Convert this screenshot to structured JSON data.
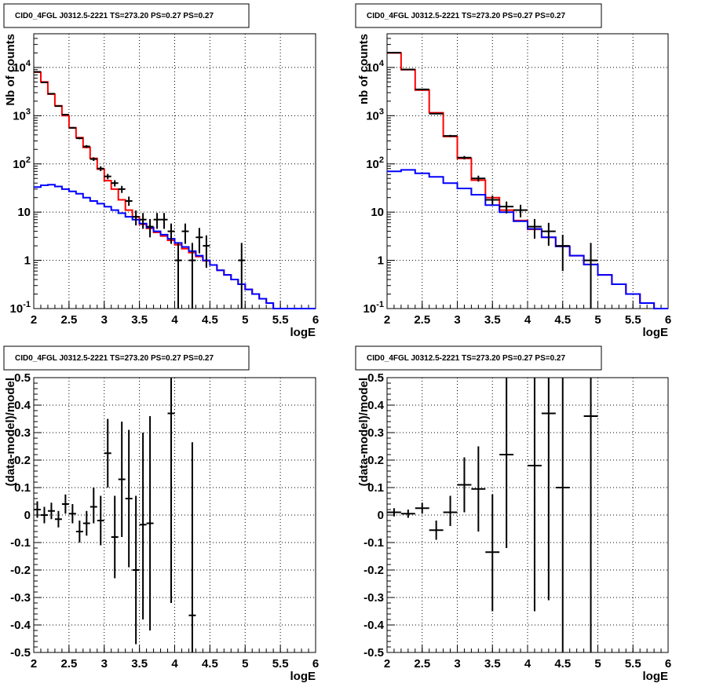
{
  "chart_data": [
    {
      "type": "line",
      "title": "CID0_4FGL J0312.5-2221 TS=273.20 PS=0.27 PS=0.27",
      "xlabel": "logE",
      "ylabel": "Nb of counts",
      "xlim": [
        2,
        6
      ],
      "ylim": [
        0.1,
        50000
      ],
      "yscale": "log",
      "grid": true,
      "x_ticks": [
        "2",
        "2.5",
        "3",
        "3.5",
        "4",
        "4.5",
        "5",
        "5.5",
        "6"
      ],
      "y_ticks": [
        {
          "value": 0.1,
          "base": "10",
          "exp": "-1"
        },
        {
          "value": 1,
          "label": "1"
        },
        {
          "value": 10,
          "label": "10"
        },
        {
          "value": 100,
          "base": "10",
          "exp": "2"
        },
        {
          "value": 1000,
          "base": "10",
          "exp": "3"
        },
        {
          "value": 10000,
          "base": "10",
          "exp": "4"
        }
      ],
      "series": [
        {
          "color": "#ff0000",
          "style": "step",
          "bin_width": 0.1,
          "x": [
            2.05,
            2.15,
            2.25,
            2.35,
            2.45,
            2.55,
            2.65,
            2.75,
            2.85,
            2.95,
            3.05,
            3.15,
            3.25,
            3.35,
            3.45,
            3.55,
            3.65,
            3.75,
            3.85,
            3.95,
            4.05,
            4.15,
            4.25,
            4.35,
            4.45,
            4.55,
            4.65,
            4.75,
            4.85,
            4.95,
            5.05,
            5.15,
            5.25,
            5.35,
            5.45,
            5.55,
            5.65,
            5.75,
            5.85,
            5.95
          ],
          "values": [
            8000,
            5000,
            2800,
            1600,
            1000,
            560,
            350,
            220,
            130,
            78,
            45,
            30,
            18,
            11,
            8,
            5.6,
            4.6,
            3.8,
            3.2,
            2.6,
            2.1,
            1.75,
            1.45,
            1.2,
            0.98,
            0.8,
            0.62,
            0.5,
            0.4,
            0.32,
            0.25,
            0.2,
            0.16,
            0.13,
            0.1,
            0.1,
            0.1,
            0.1,
            0.1,
            0.1
          ]
        },
        {
          "color": "#0000ff",
          "style": "step",
          "bin_width": 0.1,
          "x": [
            2.05,
            2.15,
            2.25,
            2.35,
            2.45,
            2.55,
            2.65,
            2.75,
            2.85,
            2.95,
            3.05,
            3.15,
            3.25,
            3.35,
            3.45,
            3.55,
            3.65,
            3.75,
            3.85,
            3.95,
            4.05,
            4.15,
            4.25,
            4.35,
            4.45,
            4.55,
            4.65,
            4.75,
            4.85,
            4.95,
            5.05,
            5.15,
            5.25,
            5.35,
            5.45,
            5.55,
            5.65,
            5.75,
            5.85,
            5.95
          ],
          "values": [
            33,
            36,
            37,
            34,
            30,
            27,
            24,
            20,
            17,
            15,
            13,
            11,
            9.5,
            8,
            7,
            5.8,
            4.8,
            4,
            3.4,
            2.8,
            2.3,
            1.9,
            1.55,
            1.25,
            1.0,
            0.8,
            0.62,
            0.5,
            0.4,
            0.32,
            0.25,
            0.2,
            0.16,
            0.13,
            0.1,
            0.1,
            0.1,
            0.1,
            0.1,
            0.1
          ]
        }
      ],
      "points": {
        "color": "#000000",
        "x": [
          2.05,
          2.15,
          2.25,
          2.35,
          2.45,
          2.55,
          2.65,
          2.75,
          2.85,
          2.95,
          3.05,
          3.15,
          3.25,
          3.35,
          3.45,
          3.55,
          3.65,
          3.75,
          3.85,
          3.95,
          4.05,
          4.15,
          4.25,
          4.35,
          4.45,
          4.95
        ],
        "y": [
          8100,
          4900,
          2850,
          1580,
          1050,
          560,
          340,
          230,
          126,
          80,
          55,
          40,
          30,
          17,
          8,
          7,
          5,
          7,
          7,
          4,
          1,
          4,
          1,
          3,
          2,
          1
        ],
        "xerr": 0.05,
        "ylo": [
          7900,
          4800,
          2750,
          1540,
          1020,
          540,
          325,
          215,
          115,
          71,
          48,
          34,
          25,
          13.5,
          5.3,
          4.5,
          3,
          4.5,
          4.5,
          2.2,
          0.1,
          2.2,
          0.1,
          1.4,
          0.7,
          0.1
        ],
        "yhi": [
          8300,
          5000,
          2950,
          1620,
          1080,
          580,
          355,
          245,
          137,
          89,
          62,
          46,
          35,
          21,
          10.8,
          9.6,
          7.2,
          9.6,
          9.6,
          5.8,
          2.3,
          5.8,
          2.3,
          4.7,
          3.3,
          2.3
        ]
      }
    },
    {
      "type": "line",
      "title": "CID0_4FGL J0312.5-2221 TS=273.20 PS=0.27 PS=0.27",
      "xlabel": "logE",
      "ylabel": "nb of counts",
      "xlim": [
        2,
        6
      ],
      "ylim": [
        0.1,
        50000
      ],
      "yscale": "log",
      "grid": true,
      "x_ticks": [
        "2",
        "2.5",
        "3",
        "3.5",
        "4",
        "4.5",
        "5",
        "5.5",
        "6"
      ],
      "y_ticks": [
        {
          "value": 0.1,
          "base": "10",
          "exp": "-1"
        },
        {
          "value": 1,
          "label": "1"
        },
        {
          "value": 10,
          "label": "10"
        },
        {
          "value": 100,
          "base": "10",
          "exp": "2"
        },
        {
          "value": 1000,
          "base": "10",
          "exp": "3"
        },
        {
          "value": 10000,
          "base": "10",
          "exp": "4"
        }
      ],
      "series": [
        {
          "color": "#ff0000",
          "style": "step",
          "bin_width": 0.2,
          "x": [
            2.1,
            2.3,
            2.5,
            2.7,
            2.9,
            3.1,
            3.3,
            3.5,
            3.7,
            3.9,
            4.1,
            4.3,
            4.5,
            4.7,
            4.9,
            5.1,
            5.3,
            5.5,
            5.7,
            5.9
          ],
          "values": [
            20000,
            9000,
            3400,
            1150,
            370,
            130,
            46,
            20,
            11,
            6.7,
            4.4,
            3.0,
            1.95,
            1.25,
            0.82,
            0.5,
            0.32,
            0.2,
            0.13,
            0.1
          ]
        },
        {
          "color": "#0000ff",
          "style": "step",
          "bin_width": 0.2,
          "x": [
            2.1,
            2.3,
            2.5,
            2.7,
            2.9,
            3.1,
            3.3,
            3.5,
            3.7,
            3.9,
            4.1,
            4.3,
            4.5,
            4.7,
            4.9,
            5.1,
            5.3,
            5.5,
            5.7,
            5.9
          ],
          "values": [
            70,
            75,
            64,
            54,
            40,
            31,
            23,
            14,
            10,
            6.5,
            4.5,
            3.0,
            1.95,
            1.25,
            0.82,
            0.5,
            0.32,
            0.2,
            0.13,
            0.1
          ]
        }
      ],
      "points": {
        "color": "#000000",
        "x": [
          2.1,
          2.3,
          2.5,
          2.7,
          2.9,
          3.1,
          3.3,
          3.5,
          3.7,
          3.9,
          4.1,
          4.3,
          4.5,
          4.9
        ],
        "y": [
          20200,
          9100,
          3500,
          1100,
          380,
          135,
          50,
          18,
          13,
          11,
          5,
          4,
          2,
          1
        ],
        "xerr": 0.1,
        "ylo": [
          20000,
          9000,
          3440,
          1070,
          360,
          124,
          43,
          14,
          9.4,
          7.8,
          2.8,
          2,
          0.6,
          0.1
        ],
        "yhi": [
          20400,
          9200,
          3560,
          1130,
          400,
          146,
          57,
          22,
          16.6,
          14.2,
          7.2,
          6,
          3.4,
          2.3
        ]
      }
    },
    {
      "type": "scatter",
      "title": "CID0_4FGL J0312.5-2221 TS=273.20 PS=0.27 PS=0.27",
      "xlabel": "logE",
      "ylabel": "(data-model)/model",
      "xlim": [
        2,
        6
      ],
      "ylim": [
        -0.5,
        0.5
      ],
      "grid": true,
      "x_ticks": [
        "2",
        "2.5",
        "3",
        "3.5",
        "4",
        "4.5",
        "5",
        "5.5",
        "6"
      ],
      "y_ticks": [
        "-0.5",
        "-0.4",
        "-0.3",
        "-0.2",
        "-0.1",
        "0",
        "0.1",
        "0.2",
        "0.3",
        "0.4",
        "0.5"
      ],
      "points": {
        "color": "#000000",
        "x": [
          2.05,
          2.15,
          2.25,
          2.35,
          2.45,
          2.55,
          2.65,
          2.75,
          2.85,
          2.95,
          3.05,
          3.15,
          3.25,
          3.35,
          3.45,
          3.55,
          3.65,
          3.95,
          4.25
        ],
        "y": [
          0.02,
          0.0,
          0.015,
          -0.015,
          0.04,
          0.005,
          -0.06,
          -0.03,
          0.03,
          -0.02,
          0.225,
          -0.08,
          0.13,
          0.06,
          -0.2,
          -0.035,
          -0.03,
          0.37,
          -0.365
        ],
        "xerr": 0.05,
        "ylo": [
          -0.01,
          -0.03,
          -0.015,
          -0.045,
          0.005,
          -0.03,
          -0.1,
          -0.075,
          -0.03,
          -0.11,
          0.1,
          -0.23,
          -0.08,
          -0.19,
          -0.47,
          -0.38,
          -0.42,
          -0.32,
          -0.5
        ],
        "yhi": [
          0.05,
          0.03,
          0.045,
          0.015,
          0.075,
          0.04,
          -0.02,
          0.015,
          0.1,
          0.07,
          0.35,
          0.07,
          0.34,
          0.31,
          0.07,
          0.3,
          0.36,
          0.5,
          0.265
        ]
      }
    },
    {
      "type": "scatter",
      "title": "CID0_4FGL J0312.5-2221 TS=273.20 PS=0.27 PS=0.27",
      "xlabel": "logE",
      "ylabel": "(data-model)/model",
      "xlim": [
        2,
        6
      ],
      "ylim": [
        -0.5,
        0.5
      ],
      "grid": true,
      "x_ticks": [
        "2",
        "2.5",
        "3",
        "3.5",
        "4",
        "4.5",
        "5",
        "5.5",
        "6"
      ],
      "y_ticks": [
        "-0.5",
        "-0.4",
        "-0.3",
        "-0.2",
        "-0.1",
        "0",
        "0.1",
        "0.2",
        "0.3",
        "0.4",
        "0.5"
      ],
      "points": {
        "color": "#000000",
        "x": [
          2.1,
          2.3,
          2.5,
          2.7,
          2.9,
          3.1,
          3.3,
          3.5,
          3.7,
          4.1,
          4.3,
          4.5,
          4.9
        ],
        "y": [
          0.01,
          0.005,
          0.025,
          -0.055,
          0.01,
          0.11,
          0.095,
          -0.135,
          0.22,
          0.18,
          0.37,
          0.1,
          0.36
        ],
        "xerr": 0.1,
        "ylo": [
          -0.005,
          -0.01,
          0.005,
          -0.09,
          -0.04,
          0.01,
          -0.06,
          -0.35,
          -0.12,
          -0.35,
          -0.31,
          -0.5,
          -0.5
        ],
        "yhi": [
          0.025,
          0.02,
          0.045,
          -0.02,
          0.07,
          0.21,
          0.25,
          0.075,
          0.5,
          0.5,
          0.5,
          0.5,
          0.5
        ]
      }
    }
  ]
}
